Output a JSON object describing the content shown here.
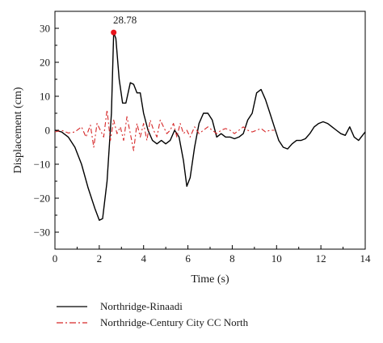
{
  "chart_data": {
    "type": "line",
    "xlabel": "Time (s)",
    "ylabel": "Displacement (cm)",
    "xlim": [
      0,
      14
    ],
    "ylim": [
      -35,
      35
    ],
    "xticks": [
      "0",
      "2",
      "4",
      "6",
      "8",
      "10",
      "12",
      "14"
    ],
    "yticks": [
      "30",
      "20",
      "10",
      "0",
      "−10",
      "−20",
      "−30"
    ],
    "grid": false,
    "legend_position": "bottom",
    "series": [
      {
        "name": "Northridge-Rinaadi",
        "color": "#000000",
        "style": "solid",
        "x": [
          0,
          0.3,
          0.6,
          0.9,
          1.2,
          1.5,
          1.8,
          2.0,
          2.15,
          2.35,
          2.55,
          2.65,
          2.75,
          2.9,
          3.05,
          3.2,
          3.4,
          3.55,
          3.7,
          3.85,
          4.0,
          4.2,
          4.4,
          4.6,
          4.8,
          5.0,
          5.2,
          5.4,
          5.6,
          5.8,
          5.95,
          6.1,
          6.3,
          6.5,
          6.7,
          6.9,
          7.1,
          7.3,
          7.5,
          7.7,
          7.9,
          8.1,
          8.3,
          8.5,
          8.7,
          8.9,
          9.1,
          9.3,
          9.5,
          9.7,
          9.9,
          10.1,
          10.3,
          10.5,
          10.7,
          10.9,
          11.1,
          11.3,
          11.5,
          11.7,
          11.9,
          12.1,
          12.3,
          12.5,
          12.7,
          12.9,
          13.1,
          13.3,
          13.5,
          13.7,
          14.0
        ],
        "y": [
          0,
          -0.5,
          -2,
          -5,
          -10,
          -17,
          -23,
          -26.5,
          -26,
          -15,
          5,
          28.78,
          27,
          15,
          8,
          8,
          14,
          13.5,
          11,
          11,
          5,
          0,
          -3,
          -4,
          -3,
          -4,
          -3,
          0,
          -2,
          -9,
          -16.5,
          -14,
          -5,
          2,
          5,
          5,
          3,
          -2,
          -1,
          -2,
          -2,
          -2.5,
          -2,
          -1,
          3,
          5,
          11,
          12,
          9,
          5,
          1,
          -3,
          -5,
          -5.5,
          -4,
          -3,
          -3,
          -2.5,
          -1,
          1,
          2,
          2.5,
          2,
          1,
          0,
          -1,
          -1.5,
          1,
          -2,
          -3,
          -0.5
        ]
      },
      {
        "name": "Northridge-Century City CC North",
        "color": "#d62728",
        "style": "dashdot",
        "x": [
          0,
          0.3,
          0.6,
          0.9,
          1.2,
          1.4,
          1.6,
          1.75,
          1.9,
          2.05,
          2.2,
          2.35,
          2.5,
          2.65,
          2.8,
          2.95,
          3.1,
          3.25,
          3.4,
          3.55,
          3.7,
          3.85,
          4.0,
          4.15,
          4.3,
          4.45,
          4.6,
          4.75,
          4.9,
          5.05,
          5.2,
          5.35,
          5.5,
          5.65,
          5.8,
          5.95,
          6.1,
          6.3,
          6.5,
          6.7,
          6.9,
          7.1,
          7.3,
          7.5,
          7.7,
          7.9,
          8.1,
          8.3,
          8.5,
          8.7,
          8.9,
          9.1,
          9.3,
          9.5,
          9.7,
          9.9
        ],
        "y": [
          -0.5,
          0,
          -0.8,
          -0.5,
          1,
          -2,
          1.5,
          -5,
          2,
          0,
          -2,
          6,
          -3,
          3,
          -1,
          1,
          -3,
          4,
          -1,
          -6,
          2,
          -2,
          2,
          -3,
          3,
          0,
          -2,
          3,
          1,
          -1,
          0,
          2,
          -2,
          2,
          -1,
          0,
          -2,
          1,
          -1,
          0,
          1,
          0,
          -1,
          0,
          0.5,
          0,
          -1,
          0,
          1,
          0,
          -0.5,
          0,
          0.5,
          -0.5,
          0,
          0
        ]
      }
    ],
    "annotations": [
      {
        "label": "28.78",
        "x": 2.65,
        "y": 28.78
      }
    ]
  }
}
